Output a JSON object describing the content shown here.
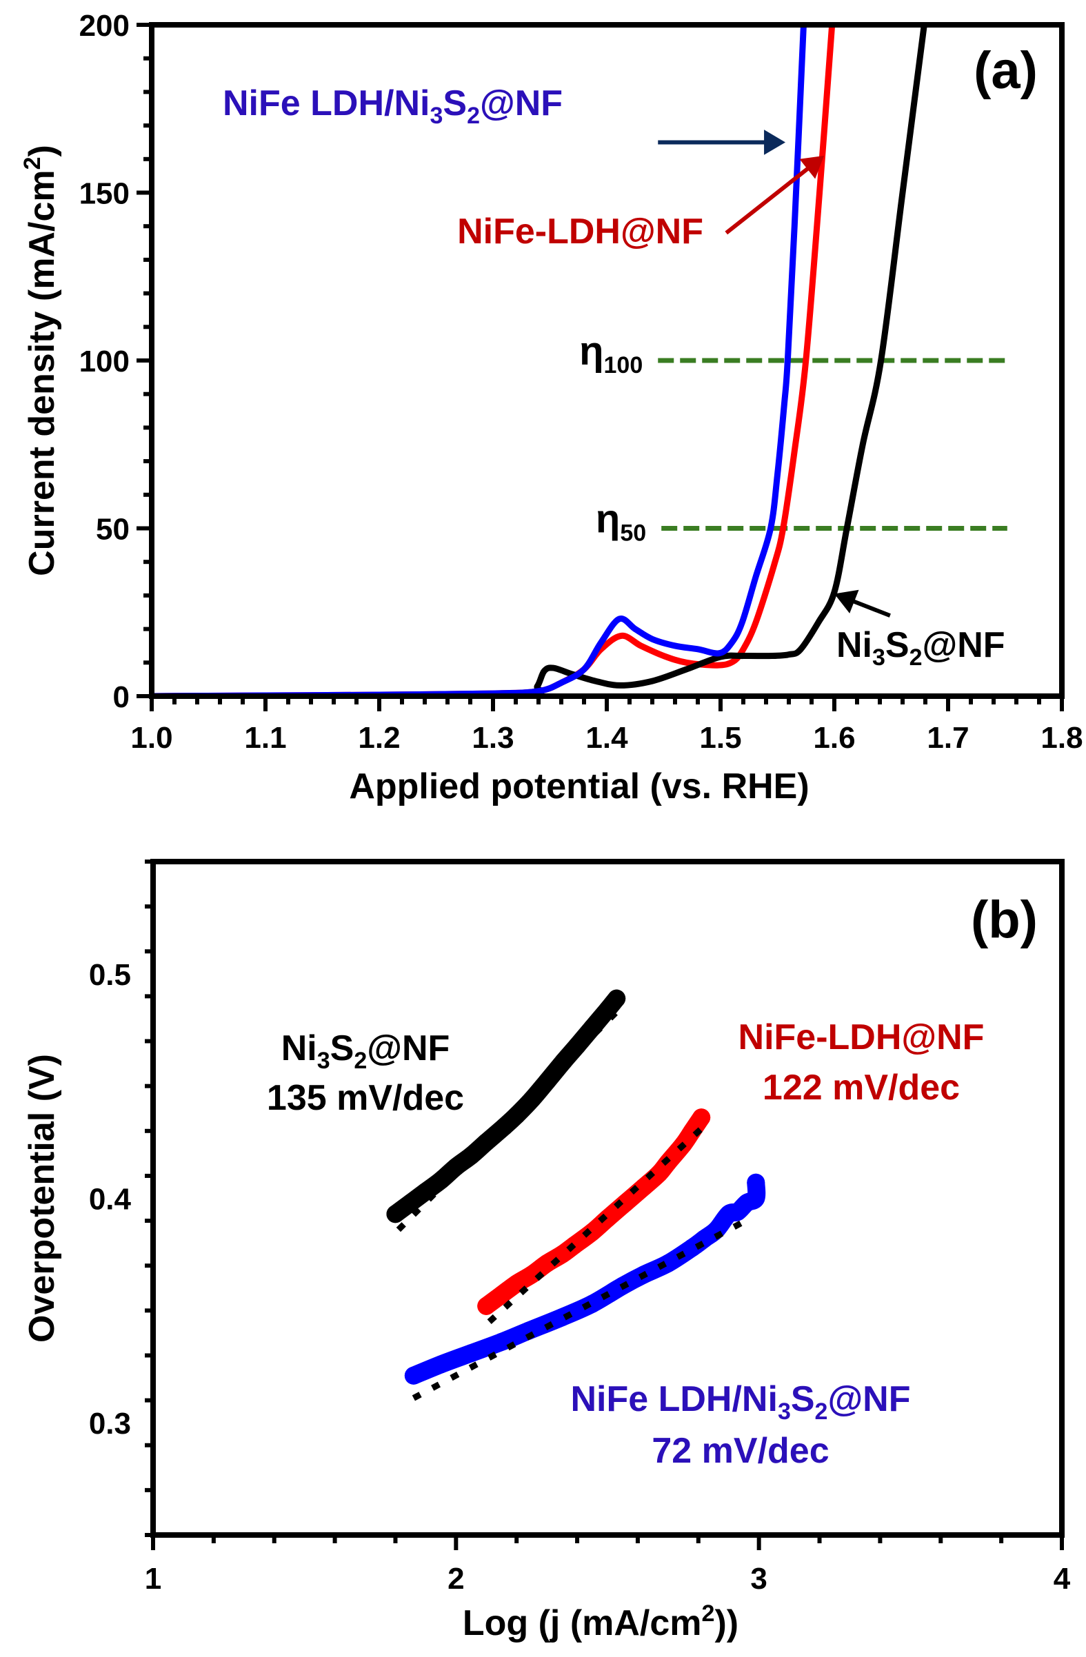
{
  "figure": {
    "panels": [
      "(a)",
      "(b)"
    ]
  },
  "chart_data": [
    {
      "type": "line",
      "panel_label": "(a)",
      "title": "",
      "xlabel": "Applied potential (vs. RHE)",
      "ylabel": "Current density (mA/cm²)",
      "ylabel_parts": {
        "main": "Current density (mA/cm",
        "sup": "2",
        "end": ")"
      },
      "xlim": [
        1.0,
        1.8
      ],
      "ylim": [
        0,
        200
      ],
      "x_ticks": [
        "1.0",
        "1.1",
        "1.2",
        "1.3",
        "1.4",
        "1.5",
        "1.6",
        "1.7",
        "1.8"
      ],
      "y_ticks": [
        "0",
        "50",
        "100",
        "150",
        "200"
      ],
      "grid": false,
      "series": [
        {
          "name": "NiFe LDH/Ni3S2@NF",
          "color": "#0000FF",
          "points": [
            [
              1.0,
              0
            ],
            [
              1.1,
              0.2
            ],
            [
              1.2,
              0.4
            ],
            [
              1.3,
              0.8
            ],
            [
              1.34,
              1.5
            ],
            [
              1.36,
              4
            ],
            [
              1.38,
              8
            ],
            [
              1.395,
              16
            ],
            [
              1.411,
              23
            ],
            [
              1.425,
              20
            ],
            [
              1.44,
              17
            ],
            [
              1.46,
              15
            ],
            [
              1.48,
              14
            ],
            [
              1.499,
              12.8
            ],
            [
              1.51,
              16
            ],
            [
              1.519,
              22
            ],
            [
              1.531,
              35.6
            ],
            [
              1.544,
              50
            ],
            [
              1.55,
              66
            ],
            [
              1.556,
              87
            ],
            [
              1.559,
              100
            ],
            [
              1.565,
              140
            ],
            [
              1.573,
              200
            ]
          ]
        },
        {
          "name": "NiFe-LDH@NF",
          "color": "#FF0000",
          "points": [
            [
              1.0,
              0
            ],
            [
              1.1,
              0.2
            ],
            [
              1.2,
              0.4
            ],
            [
              1.3,
              0.8
            ],
            [
              1.34,
              1.5
            ],
            [
              1.36,
              4
            ],
            [
              1.38,
              8
            ],
            [
              1.395,
              14
            ],
            [
              1.413,
              18
            ],
            [
              1.43,
              15
            ],
            [
              1.45,
              12
            ],
            [
              1.47,
              10
            ],
            [
              1.497,
              9.2
            ],
            [
              1.511,
              10.3
            ],
            [
              1.52,
              14
            ],
            [
              1.531,
              22
            ],
            [
              1.547,
              39
            ],
            [
              1.555,
              50
            ],
            [
              1.565,
              73
            ],
            [
              1.575,
              100
            ],
            [
              1.587,
              150
            ],
            [
              1.598,
              200
            ]
          ]
        },
        {
          "name": "Ni3S2@NF",
          "color": "#000000",
          "points": [
            [
              1.0,
              0
            ],
            [
              1.2,
              0.2
            ],
            [
              1.33,
              0.5
            ],
            [
              1.339,
              3
            ],
            [
              1.345,
              7.5
            ],
            [
              1.353,
              8.4
            ],
            [
              1.37,
              6.5
            ],
            [
              1.39,
              4.5
            ],
            [
              1.412,
              3.2
            ],
            [
              1.44,
              4.5
            ],
            [
              1.47,
              8
            ],
            [
              1.5,
              11.7
            ],
            [
              1.52,
              12
            ],
            [
              1.545,
              12
            ],
            [
              1.56,
              12.4
            ],
            [
              1.57,
              13.8
            ],
            [
              1.586,
              22
            ],
            [
              1.6,
              31
            ],
            [
              1.611,
              50
            ],
            [
              1.625,
              75
            ],
            [
              1.641,
              100
            ],
            [
              1.66,
              150
            ],
            [
              1.679,
              200
            ]
          ]
        }
      ],
      "reference_lines": [
        {
          "label_main": "η",
          "label_sub": "100",
          "y": 100,
          "x_range": [
            1.445,
            1.75
          ],
          "color": "#3A7D22",
          "style": "dashed"
        },
        {
          "label_main": "η",
          "label_sub": "50",
          "y": 50,
          "x_range": [
            1.448,
            1.752
          ],
          "color": "#3A7D22",
          "style": "dashed"
        }
      ],
      "annotations": [
        {
          "id": "blue",
          "parts": [
            [
              "NiFe LDH/Ni",
              ""
            ],
            [
              "3",
              "sub"
            ],
            [
              "S",
              ""
            ],
            [
              "2",
              "sub"
            ],
            [
              "@NF",
              ""
            ]
          ],
          "color": "#2B10B9",
          "arrow_color": "#0B2A5B",
          "arrow_from": [
            1.445,
            165
          ],
          "arrow_to": [
            1.557,
            165
          ]
        },
        {
          "id": "red",
          "parts": [
            [
              "NiFe-LDH@NF",
              ""
            ]
          ],
          "color": "#C00000",
          "arrow_color": "#C00000",
          "arrow_from": [
            1.505,
            138
          ],
          "arrow_to": [
            1.591,
            161
          ]
        },
        {
          "id": "black",
          "parts": [
            [
              "Ni",
              ""
            ],
            [
              "3",
              "sub"
            ],
            [
              "S",
              ""
            ],
            [
              "2",
              "sub"
            ],
            [
              "@NF",
              ""
            ]
          ],
          "color": "#000000",
          "arrow_color": "#000000",
          "arrow_from": [
            1.649,
            24
          ],
          "arrow_to": [
            1.6,
            30.5
          ]
        }
      ]
    },
    {
      "type": "scatter",
      "panel_label": "(b)",
      "title": "",
      "xlabel": "Log (j (mA/cm²))",
      "xlabel_parts": {
        "main": "Log (j (mA/cm",
        "sup": "2",
        "end": "))"
      },
      "ylabel": "Overpotential (V)",
      "xlim": [
        1,
        4
      ],
      "ylim": [
        0.25,
        0.55
      ],
      "x_ticks": [
        "1",
        "2",
        "3",
        "4"
      ],
      "y_ticks": [
        "0.3",
        "0.4",
        "0.5"
      ],
      "grid": false,
      "series": [
        {
          "name": "Ni3S2@NF",
          "tafel_slope": "135 mV/dec",
          "color": "#000000",
          "points": [
            [
              1.8,
              0.393
            ],
            [
              1.85,
              0.398
            ],
            [
              1.9,
              0.403
            ],
            [
              1.95,
              0.408
            ],
            [
              2.0,
              0.414
            ],
            [
              2.05,
              0.419
            ],
            [
              2.1,
              0.425
            ],
            [
              2.16,
              0.432
            ],
            [
              2.2,
              0.437
            ],
            [
              2.25,
              0.444
            ],
            [
              2.3,
              0.452
            ],
            [
              2.355,
              0.461
            ],
            [
              2.4,
              0.468
            ],
            [
              2.45,
              0.476
            ],
            [
              2.5,
              0.484
            ],
            [
              2.53,
              0.489
            ]
          ],
          "fit": {
            "x": [
              1.81,
              2.53
            ],
            "y": [
              0.386,
              0.483
            ]
          }
        },
        {
          "name": "NiFe-LDH@NF",
          "tafel_slope": "122 mV/dec",
          "color": "#FF0000",
          "points": [
            [
              2.1,
              0.352
            ],
            [
              2.15,
              0.357
            ],
            [
              2.2,
              0.362
            ],
            [
              2.25,
              0.366
            ],
            [
              2.3,
              0.371
            ],
            [
              2.35,
              0.375
            ],
            [
              2.39,
              0.379
            ],
            [
              2.45,
              0.385
            ],
            [
              2.5,
              0.391
            ],
            [
              2.56,
              0.398
            ],
            [
              2.62,
              0.405
            ],
            [
              2.67,
              0.411
            ],
            [
              2.7,
              0.416
            ],
            [
              2.75,
              0.424
            ],
            [
              2.78,
              0.43
            ],
            [
              2.81,
              0.436
            ]
          ],
          "fit": {
            "x": [
              2.11,
              2.81
            ],
            "y": [
              0.345,
              0.431
            ]
          }
        },
        {
          "name": "NiFe LDH/Ni3S2@NF",
          "tafel_slope": "72 mV/dec",
          "color": "#0000FF",
          "points": [
            [
              1.86,
              0.321
            ],
            [
              1.95,
              0.326
            ],
            [
              2.05,
              0.331
            ],
            [
              2.15,
              0.336
            ],
            [
              2.24,
              0.341
            ],
            [
              2.35,
              0.347
            ],
            [
              2.45,
              0.353
            ],
            [
              2.55,
              0.361
            ],
            [
              2.62,
              0.366
            ],
            [
              2.7,
              0.371
            ],
            [
              2.78,
              0.378
            ],
            [
              2.82,
              0.382
            ],
            [
              2.86,
              0.386
            ],
            [
              2.9,
              0.393
            ],
            [
              2.93,
              0.394
            ],
            [
              2.96,
              0.398
            ],
            [
              2.99,
              0.4
            ],
            [
              2.99,
              0.407
            ]
          ],
          "fit": {
            "x": [
              1.86,
              2.97
            ],
            "y": [
              0.311,
              0.391
            ]
          }
        }
      ],
      "annotations": [
        {
          "id": "black",
          "line1": [
            [
              "Ni",
              ""
            ],
            [
              "3",
              "sub"
            ],
            [
              "S",
              ""
            ],
            [
              "2",
              "sub"
            ],
            [
              "@NF",
              ""
            ]
          ],
          "line2": "135 mV/dec",
          "color": "#000000"
        },
        {
          "id": "red",
          "line1": [
            [
              "NiFe-LDH@NF",
              ""
            ]
          ],
          "line2": "122 mV/dec",
          "color": "#C00000"
        },
        {
          "id": "blue",
          "line1": [
            [
              "NiFe LDH/Ni",
              ""
            ],
            [
              "3",
              "sub"
            ],
            [
              "S",
              ""
            ],
            [
              "2",
              "sub"
            ],
            [
              "@NF",
              ""
            ]
          ],
          "line2": "72 mV/dec",
          "color": "#2B10B9"
        }
      ]
    }
  ]
}
